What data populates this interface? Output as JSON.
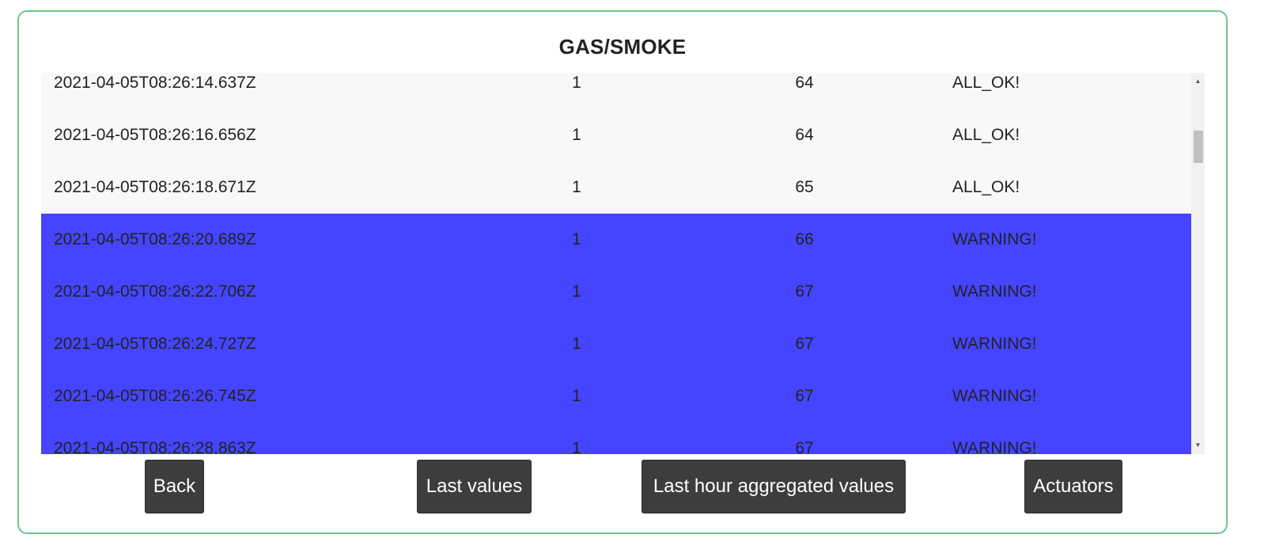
{
  "title": "GAS/SMOKE",
  "rows": [
    {
      "time": "2021-04-05T08:26:14.637Z",
      "flag": "1",
      "value": "64",
      "status": "ALL_OK!",
      "level": "normal"
    },
    {
      "time": "2021-04-05T08:26:16.656Z",
      "flag": "1",
      "value": "64",
      "status": "ALL_OK!",
      "level": "normal"
    },
    {
      "time": "2021-04-05T08:26:18.671Z",
      "flag": "1",
      "value": "65",
      "status": "ALL_OK!",
      "level": "normal"
    },
    {
      "time": "2021-04-05T08:26:20.689Z",
      "flag": "1",
      "value": "66",
      "status": "WARNING!",
      "level": "warning"
    },
    {
      "time": "2021-04-05T08:26:22.706Z",
      "flag": "1",
      "value": "67",
      "status": "WARNING!",
      "level": "warning"
    },
    {
      "time": "2021-04-05T08:26:24.727Z",
      "flag": "1",
      "value": "67",
      "status": "WARNING!",
      "level": "warning"
    },
    {
      "time": "2021-04-05T08:26:26.745Z",
      "flag": "1",
      "value": "67",
      "status": "WARNING!",
      "level": "warning"
    },
    {
      "time": "2021-04-05T08:26:28.863Z",
      "flag": "1",
      "value": "67",
      "status": "WARNING!",
      "level": "warning"
    }
  ],
  "colors": {
    "normal_row": "#f7f8f9",
    "warning_row": "#4545ff",
    "border": "#6cc58a",
    "button": "#3d3d3d"
  },
  "buttons": {
    "back": "Back",
    "last_values": "Last values",
    "last_hour": "Last hour aggregated values",
    "actuators": "Actuators"
  },
  "scrollbar": {
    "up_icon": "chevron-up-icon",
    "down_icon": "chevron-down-icon"
  }
}
